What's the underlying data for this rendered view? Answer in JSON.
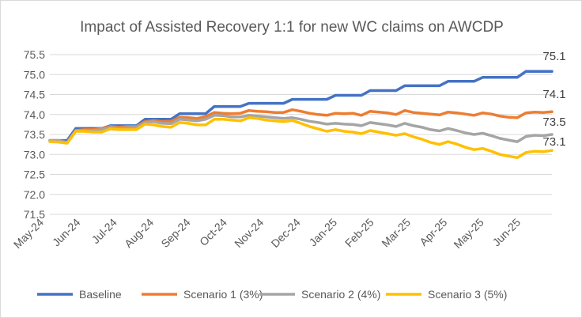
{
  "chart_data": {
    "type": "line",
    "title": "Impact of Assisted Recovery 1:1 for new WC claims on AWCDP",
    "xlabel": "",
    "ylabel": "",
    "ylim": [
      71.5,
      75.5
    ],
    "yticks": [
      "71.5",
      "72.0",
      "72.5",
      "73.0",
      "73.5",
      "74.0",
      "74.5",
      "75.0",
      "75.5"
    ],
    "grid": true,
    "legend": "bottom",
    "x_tick_labels": [
      "May-24",
      "Jun-24",
      "Jul-24",
      "Aug-24",
      "Sep-24",
      "Oct-24",
      "Nov-24",
      "Dec-24",
      "Jan-25",
      "Feb-25",
      "Mar-25",
      "Apr-25",
      "May-25",
      "Jun-25"
    ],
    "series": [
      {
        "name": "Baseline",
        "color": "#4472C4",
        "end_label": "75.1",
        "values": [
          73.35,
          73.35,
          73.35,
          73.65,
          73.65,
          73.65,
          73.65,
          73.72,
          73.72,
          73.72,
          73.72,
          73.88,
          73.88,
          73.88,
          73.88,
          74.02,
          74.02,
          74.02,
          74.02,
          74.2,
          74.2,
          74.2,
          74.2,
          74.28,
          74.28,
          74.28,
          74.28,
          74.28,
          74.38,
          74.38,
          74.38,
          74.38,
          74.38,
          74.48,
          74.48,
          74.48,
          74.48,
          74.6,
          74.6,
          74.6,
          74.6,
          74.72,
          74.72,
          74.72,
          74.72,
          74.72,
          74.83,
          74.83,
          74.83,
          74.83,
          74.93,
          74.93,
          74.93,
          74.93,
          74.93,
          75.08,
          75.08,
          75.08,
          75.08
        ]
      },
      {
        "name": "Scenario 1 (3%)",
        "color": "#ED7D31",
        "end_label": "74.1",
        "values": [
          73.35,
          73.35,
          73.3,
          73.6,
          73.62,
          73.62,
          73.65,
          73.7,
          73.68,
          73.7,
          73.7,
          73.82,
          73.85,
          73.82,
          73.83,
          73.93,
          73.92,
          73.9,
          73.95,
          74.05,
          74.03,
          74.02,
          74.03,
          74.1,
          74.08,
          74.07,
          74.05,
          74.05,
          74.12,
          74.08,
          74.03,
          74,
          73.98,
          74.03,
          74.02,
          74.03,
          73.98,
          74.08,
          74.06,
          74.04,
          74,
          74.1,
          74.05,
          74.03,
          74.01,
          73.99,
          74.06,
          74.04,
          74.01,
          73.98,
          74.04,
          74.01,
          73.96,
          73.93,
          73.92,
          74.04,
          74.06,
          74.05,
          74.07
        ]
      },
      {
        "name": "Scenario 2 (4%)",
        "color": "#A5A5A5",
        "end_label": "73.5",
        "values": [
          73.35,
          73.35,
          73.3,
          73.6,
          73.6,
          73.6,
          73.62,
          73.68,
          73.65,
          73.67,
          73.68,
          73.8,
          73.82,
          73.78,
          73.77,
          73.88,
          73.86,
          73.84,
          73.88,
          73.98,
          73.97,
          73.94,
          73.94,
          73.98,
          73.96,
          73.94,
          73.92,
          73.9,
          73.92,
          73.88,
          73.83,
          73.8,
          73.76,
          73.78,
          73.76,
          73.75,
          73.72,
          73.8,
          73.77,
          73.74,
          73.7,
          73.78,
          73.72,
          73.68,
          73.62,
          73.59,
          73.65,
          73.6,
          73.54,
          73.5,
          73.53,
          73.47,
          73.4,
          73.36,
          73.32,
          73.45,
          73.48,
          73.47,
          73.5
        ]
      },
      {
        "name": "Scenario 3 (5%)",
        "color": "#FFC000",
        "end_label": "73.1",
        "values": [
          73.32,
          73.31,
          73.28,
          73.58,
          73.58,
          73.56,
          73.56,
          73.64,
          73.62,
          73.62,
          73.62,
          73.76,
          73.74,
          73.7,
          73.68,
          73.8,
          73.78,
          73.74,
          73.74,
          73.88,
          73.88,
          73.86,
          73.84,
          73.92,
          73.9,
          73.86,
          73.84,
          73.82,
          73.85,
          73.78,
          73.7,
          73.64,
          73.58,
          73.62,
          73.58,
          73.56,
          73.52,
          73.6,
          73.56,
          73.52,
          73.48,
          73.52,
          73.44,
          73.38,
          73.3,
          73.25,
          73.32,
          73.26,
          73.18,
          73.12,
          73.15,
          73.08,
          73.0,
          72.96,
          72.92,
          73.05,
          73.08,
          73.07,
          73.1
        ]
      }
    ]
  }
}
